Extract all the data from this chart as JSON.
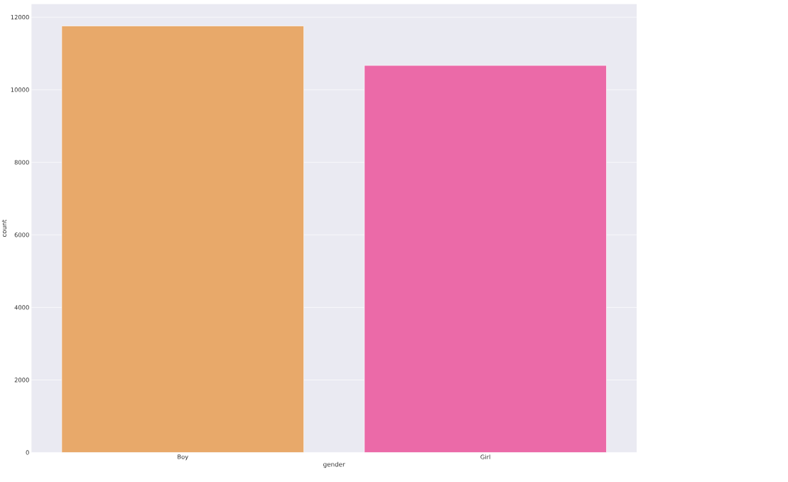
{
  "chart_data": {
    "type": "bar",
    "xlabel": "gender",
    "ylabel": "count",
    "categories": [
      "Boy",
      "Girl"
    ],
    "values": [
      11760,
      10670
    ],
    "colors": [
      "#e8a96a",
      "#eb6aa8"
    ],
    "ylim": [
      0,
      12360
    ],
    "yticks": [
      0,
      2000,
      4000,
      6000,
      8000,
      10000,
      12000
    ],
    "grid": "y"
  }
}
